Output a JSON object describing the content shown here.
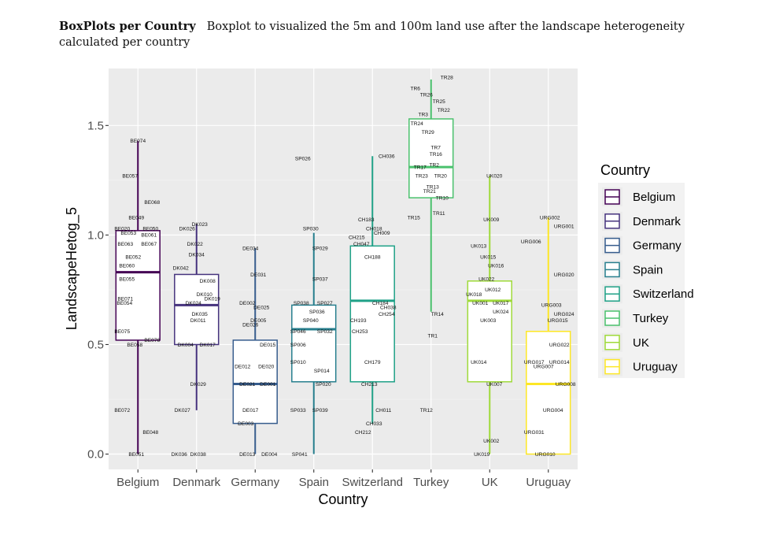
{
  "caption": {
    "bold": "BoxPlots per Country",
    "text": "Boxplot to visualized the 5m and 100m land use after the landscape heterogeneity calculated per country"
  },
  "chart_data": {
    "type": "boxplot",
    "xlabel": "Country",
    "ylabel": "LandscapeHetog_5",
    "ylim": [
      -0.07,
      1.76
    ],
    "yticks": [
      0.0,
      0.5,
      1.0,
      1.5
    ],
    "ytick_labels": [
      "0.0",
      "0.5",
      "1.0",
      "1.5"
    ],
    "legend_title": "Country",
    "categories": [
      "Belgium",
      "Denmark",
      "Germany",
      "Spain",
      "Switzerland",
      "Turkey",
      "UK",
      "Uruguay"
    ],
    "colors": [
      "#440154",
      "#46337e",
      "#365c8d",
      "#277f8e",
      "#1fa187",
      "#4ac16d",
      "#9fda3a",
      "#fde725"
    ],
    "boxes": [
      {
        "name": "Belgium",
        "min": 0.0,
        "q1": 0.52,
        "median": 0.83,
        "q3": 1.02,
        "max": 1.43
      },
      {
        "name": "Denmark",
        "min": 0.2,
        "q1": 0.5,
        "median": 0.68,
        "q3": 0.82,
        "max": 1.05
      },
      {
        "name": "Germany",
        "min": 0.0,
        "q1": 0.14,
        "median": 0.32,
        "q3": 0.52,
        "max": 0.94
      },
      {
        "name": "Spain",
        "min": 0.0,
        "q1": 0.33,
        "median": 0.57,
        "q3": 0.68,
        "max": 1.01
      },
      {
        "name": "Switzerland",
        "min": 0.14,
        "q1": 0.33,
        "median": 0.7,
        "q3": 0.95,
        "max": 1.36
      },
      {
        "name": "Turkey",
        "min": 0.65,
        "q1": 1.17,
        "median": 1.31,
        "q3": 1.53,
        "max": 1.71
      },
      {
        "name": "UK",
        "min": 0.0,
        "q1": 0.33,
        "median": 0.7,
        "q3": 0.79,
        "max": 1.27
      },
      {
        "name": "Uruguay",
        "min": 0.0,
        "q1": 0.0,
        "median": 0.32,
        "q3": 0.56,
        "max": 1.08
      }
    ],
    "point_labels": [
      {
        "cat": 0,
        "label": "BE074",
        "y": 1.43,
        "dx": 0
      },
      {
        "cat": 0,
        "label": "BE057",
        "y": 1.27,
        "dx": -10
      },
      {
        "cat": 0,
        "label": "BE068",
        "y": 1.15,
        "dx": 18
      },
      {
        "cat": 0,
        "label": "BE049",
        "y": 1.08,
        "dx": -2
      },
      {
        "cat": 0,
        "label": "BE020",
        "y": 1.03,
        "dx": -20
      },
      {
        "cat": 0,
        "label": "BE050",
        "y": 1.03,
        "dx": 16
      },
      {
        "cat": 0,
        "label": "BE053",
        "y": 1.01,
        "dx": -12
      },
      {
        "cat": 0,
        "label": "BE061",
        "y": 1.0,
        "dx": 14
      },
      {
        "cat": 0,
        "label": "BE063",
        "y": 0.96,
        "dx": -16
      },
      {
        "cat": 0,
        "label": "BE067",
        "y": 0.96,
        "dx": 14
      },
      {
        "cat": 0,
        "label": "BE052",
        "y": 0.9,
        "dx": -6
      },
      {
        "cat": 0,
        "label": "BE060",
        "y": 0.86,
        "dx": -14
      },
      {
        "cat": 0,
        "label": "BE055",
        "y": 0.8,
        "dx": -14
      },
      {
        "cat": 0,
        "label": "BE071",
        "y": 0.71,
        "dx": -16
      },
      {
        "cat": 0,
        "label": "BE054",
        "y": 0.69,
        "dx": -17
      },
      {
        "cat": 0,
        "label": "BE075",
        "y": 0.56,
        "dx": -20
      },
      {
        "cat": 0,
        "label": "BE076",
        "y": 0.52,
        "dx": 18
      },
      {
        "cat": 0,
        "label": "BE058",
        "y": 0.5,
        "dx": -4
      },
      {
        "cat": 0,
        "label": "BE072",
        "y": 0.2,
        "dx": -20
      },
      {
        "cat": 0,
        "label": "BE048",
        "y": 0.1,
        "dx": 16
      },
      {
        "cat": 0,
        "label": "BE051",
        "y": 0.0,
        "dx": -2
      },
      {
        "cat": 1,
        "label": "DK023",
        "y": 1.05,
        "dx": 4
      },
      {
        "cat": 1,
        "label": "DK026",
        "y": 1.03,
        "dx": -12
      },
      {
        "cat": 1,
        "label": "DK022",
        "y": 0.96,
        "dx": -2
      },
      {
        "cat": 1,
        "label": "DK034",
        "y": 0.91,
        "dx": 0
      },
      {
        "cat": 1,
        "label": "DK042",
        "y": 0.85,
        "dx": -20
      },
      {
        "cat": 1,
        "label": "DK008",
        "y": 0.79,
        "dx": 14
      },
      {
        "cat": 1,
        "label": "DK010",
        "y": 0.73,
        "dx": 10
      },
      {
        "cat": 1,
        "label": "DK019",
        "y": 0.71,
        "dx": 20
      },
      {
        "cat": 1,
        "label": "DK024",
        "y": 0.69,
        "dx": -4
      },
      {
        "cat": 1,
        "label": "DK035",
        "y": 0.64,
        "dx": 4
      },
      {
        "cat": 1,
        "label": "DK011",
        "y": 0.61,
        "dx": 2
      },
      {
        "cat": 1,
        "label": "DK004",
        "y": 0.5,
        "dx": -14
      },
      {
        "cat": 1,
        "label": "DK017",
        "y": 0.5,
        "dx": 14
      },
      {
        "cat": 1,
        "label": "DK029",
        "y": 0.32,
        "dx": 2
      },
      {
        "cat": 1,
        "label": "DK027",
        "y": 0.2,
        "dx": -18
      },
      {
        "cat": 1,
        "label": "DK036",
        "y": 0.0,
        "dx": -22
      },
      {
        "cat": 1,
        "label": "DK038",
        "y": 0.0,
        "dx": 2
      },
      {
        "cat": 2,
        "label": "DE034",
        "y": 0.94,
        "dx": -6
      },
      {
        "cat": 2,
        "label": "DE031",
        "y": 0.82,
        "dx": 4
      },
      {
        "cat": 2,
        "label": "DE002",
        "y": 0.69,
        "dx": -10
      },
      {
        "cat": 2,
        "label": "DE025",
        "y": 0.67,
        "dx": 8
      },
      {
        "cat": 2,
        "label": "DE005",
        "y": 0.61,
        "dx": 4
      },
      {
        "cat": 2,
        "label": "DE026",
        "y": 0.59,
        "dx": -6
      },
      {
        "cat": 2,
        "label": "DE015",
        "y": 0.5,
        "dx": 16
      },
      {
        "cat": 2,
        "label": "DE012",
        "y": 0.4,
        "dx": -16
      },
      {
        "cat": 2,
        "label": "DE020",
        "y": 0.4,
        "dx": 14
      },
      {
        "cat": 2,
        "label": "DE021",
        "y": 0.32,
        "dx": -10
      },
      {
        "cat": 2,
        "label": "DE001",
        "y": 0.32,
        "dx": 16
      },
      {
        "cat": 2,
        "label": "DE017",
        "y": 0.2,
        "dx": -6
      },
      {
        "cat": 2,
        "label": "DE003",
        "y": 0.14,
        "dx": -12
      },
      {
        "cat": 2,
        "label": "DE013",
        "y": 0.0,
        "dx": -10
      },
      {
        "cat": 2,
        "label": "DE004",
        "y": 0.0,
        "dx": 18
      },
      {
        "cat": 3,
        "label": "SP026",
        "y": 1.35,
        "dx": -14
      },
      {
        "cat": 3,
        "label": "SP030",
        "y": 1.03,
        "dx": -4
      },
      {
        "cat": 3,
        "label": "SP029",
        "y": 0.94,
        "dx": 8
      },
      {
        "cat": 3,
        "label": "SP037",
        "y": 0.8,
        "dx": 8
      },
      {
        "cat": 3,
        "label": "SP038",
        "y": 0.69,
        "dx": -16
      },
      {
        "cat": 3,
        "label": "SP027",
        "y": 0.69,
        "dx": 14
      },
      {
        "cat": 3,
        "label": "SP036",
        "y": 0.65,
        "dx": 4
      },
      {
        "cat": 3,
        "label": "SP040",
        "y": 0.61,
        "dx": -4
      },
      {
        "cat": 3,
        "label": "SP046",
        "y": 0.56,
        "dx": -20
      },
      {
        "cat": 3,
        "label": "SP032",
        "y": 0.56,
        "dx": 14
      },
      {
        "cat": 3,
        "label": "SP006",
        "y": 0.5,
        "dx": -20
      },
      {
        "cat": 3,
        "label": "SP010",
        "y": 0.42,
        "dx": -20
      },
      {
        "cat": 3,
        "label": "SP014",
        "y": 0.38,
        "dx": 10
      },
      {
        "cat": 3,
        "label": "SP020",
        "y": 0.32,
        "dx": 12
      },
      {
        "cat": 3,
        "label": "SP033",
        "y": 0.2,
        "dx": -20
      },
      {
        "cat": 3,
        "label": "SP039",
        "y": 0.2,
        "dx": 8
      },
      {
        "cat": 3,
        "label": "SP041",
        "y": 0.0,
        "dx": -18
      },
      {
        "cat": 4,
        "label": "CH036",
        "y": 1.36,
        "dx": 18
      },
      {
        "cat": 4,
        "label": "CH183",
        "y": 1.07,
        "dx": -8
      },
      {
        "cat": 4,
        "label": "CH018",
        "y": 1.03,
        "dx": 2
      },
      {
        "cat": 4,
        "label": "CH009",
        "y": 1.01,
        "dx": 12
      },
      {
        "cat": 4,
        "label": "CH215",
        "y": 0.99,
        "dx": -20
      },
      {
        "cat": 4,
        "label": "CH047",
        "y": 0.96,
        "dx": -14
      },
      {
        "cat": 4,
        "label": "CH188",
        "y": 0.9,
        "dx": 0
      },
      {
        "cat": 4,
        "label": "CH184",
        "y": 0.69,
        "dx": 10
      },
      {
        "cat": 4,
        "label": "CH038",
        "y": 0.67,
        "dx": 20
      },
      {
        "cat": 4,
        "label": "CH254",
        "y": 0.64,
        "dx": 18
      },
      {
        "cat": 4,
        "label": "CH193",
        "y": 0.61,
        "dx": -18
      },
      {
        "cat": 4,
        "label": "CH253",
        "y": 0.56,
        "dx": -16
      },
      {
        "cat": 4,
        "label": "CH179",
        "y": 0.42,
        "dx": 0
      },
      {
        "cat": 4,
        "label": "CH213",
        "y": 0.32,
        "dx": -4
      },
      {
        "cat": 4,
        "label": "CH011",
        "y": 0.2,
        "dx": 14
      },
      {
        "cat": 4,
        "label": "CH033",
        "y": 0.14,
        "dx": 2
      },
      {
        "cat": 4,
        "label": "CH212",
        "y": 0.1,
        "dx": -12
      },
      {
        "cat": 5,
        "label": "TR28",
        "y": 1.72,
        "dx": 20
      },
      {
        "cat": 5,
        "label": "TR6",
        "y": 1.67,
        "dx": -20
      },
      {
        "cat": 5,
        "label": "TR26",
        "y": 1.64,
        "dx": -6
      },
      {
        "cat": 5,
        "label": "TR25",
        "y": 1.61,
        "dx": 10
      },
      {
        "cat": 5,
        "label": "TR22",
        "y": 1.57,
        "dx": 16
      },
      {
        "cat": 5,
        "label": "TR3",
        "y": 1.55,
        "dx": -10
      },
      {
        "cat": 5,
        "label": "TR24",
        "y": 1.51,
        "dx": -18
      },
      {
        "cat": 5,
        "label": "TR29",
        "y": 1.47,
        "dx": -4
      },
      {
        "cat": 5,
        "label": "TR7",
        "y": 1.4,
        "dx": 6
      },
      {
        "cat": 5,
        "label": "TR16",
        "y": 1.37,
        "dx": 6
      },
      {
        "cat": 5,
        "label": "TR2",
        "y": 1.32,
        "dx": 4
      },
      {
        "cat": 5,
        "label": "TR17",
        "y": 1.31,
        "dx": -14
      },
      {
        "cat": 5,
        "label": "TR23",
        "y": 1.27,
        "dx": -12
      },
      {
        "cat": 5,
        "label": "TR20",
        "y": 1.27,
        "dx": 12
      },
      {
        "cat": 5,
        "label": "TR13",
        "y": 1.22,
        "dx": 2
      },
      {
        "cat": 5,
        "label": "TR21",
        "y": 1.2,
        "dx": -2
      },
      {
        "cat": 5,
        "label": "TR10",
        "y": 1.17,
        "dx": 14
      },
      {
        "cat": 5,
        "label": "TR15",
        "y": 1.08,
        "dx": -22
      },
      {
        "cat": 5,
        "label": "TR11",
        "y": 1.1,
        "dx": 10
      },
      {
        "cat": 5,
        "label": "TR14",
        "y": 0.64,
        "dx": 8
      },
      {
        "cat": 5,
        "label": "TR1",
        "y": 0.54,
        "dx": 2
      },
      {
        "cat": 5,
        "label": "TR12",
        "y": 0.2,
        "dx": -6
      },
      {
        "cat": 6,
        "label": "UK020",
        "y": 1.27,
        "dx": 6
      },
      {
        "cat": 6,
        "label": "UK009",
        "y": 1.07,
        "dx": 2
      },
      {
        "cat": 6,
        "label": "UK013",
        "y": 0.95,
        "dx": -14
      },
      {
        "cat": 6,
        "label": "UK015",
        "y": 0.9,
        "dx": -2
      },
      {
        "cat": 6,
        "label": "UK016",
        "y": 0.86,
        "dx": 8
      },
      {
        "cat": 6,
        "label": "UK022",
        "y": 0.8,
        "dx": -4
      },
      {
        "cat": 6,
        "label": "UK012",
        "y": 0.75,
        "dx": 4
      },
      {
        "cat": 6,
        "label": "UK018",
        "y": 0.73,
        "dx": -20
      },
      {
        "cat": 6,
        "label": "UK001",
        "y": 0.69,
        "dx": -12
      },
      {
        "cat": 6,
        "label": "UK017",
        "y": 0.69,
        "dx": 14
      },
      {
        "cat": 6,
        "label": "UK024",
        "y": 0.65,
        "dx": 14
      },
      {
        "cat": 6,
        "label": "UK003",
        "y": 0.61,
        "dx": -2
      },
      {
        "cat": 6,
        "label": "UK014",
        "y": 0.42,
        "dx": -14
      },
      {
        "cat": 6,
        "label": "UK007",
        "y": 0.32,
        "dx": 6
      },
      {
        "cat": 6,
        "label": "UK002",
        "y": 0.06,
        "dx": 2
      },
      {
        "cat": 6,
        "label": "UK019",
        "y": 0.0,
        "dx": -10
      },
      {
        "cat": 7,
        "label": "URG002",
        "y": 1.08,
        "dx": 2
      },
      {
        "cat": 7,
        "label": "URG001",
        "y": 1.04,
        "dx": 20
      },
      {
        "cat": 7,
        "label": "URG006",
        "y": 0.97,
        "dx": -22
      },
      {
        "cat": 7,
        "label": "URG020",
        "y": 0.82,
        "dx": 20
      },
      {
        "cat": 7,
        "label": "URG003",
        "y": 0.68,
        "dx": 4
      },
      {
        "cat": 7,
        "label": "URG024",
        "y": 0.64,
        "dx": 20
      },
      {
        "cat": 7,
        "label": "URG015",
        "y": 0.61,
        "dx": 12
      },
      {
        "cat": 7,
        "label": "URG022",
        "y": 0.5,
        "dx": 14
      },
      {
        "cat": 7,
        "label": "URG017",
        "y": 0.42,
        "dx": -18
      },
      {
        "cat": 7,
        "label": "URG014",
        "y": 0.42,
        "dx": 14
      },
      {
        "cat": 7,
        "label": "URG007",
        "y": 0.4,
        "dx": -6
      },
      {
        "cat": 7,
        "label": "URG008",
        "y": 0.32,
        "dx": 22
      },
      {
        "cat": 7,
        "label": "URG004",
        "y": 0.2,
        "dx": 6
      },
      {
        "cat": 7,
        "label": "URG031",
        "y": 0.1,
        "dx": -18
      },
      {
        "cat": 7,
        "label": "URG010",
        "y": 0.0,
        "dx": -4
      }
    ]
  }
}
